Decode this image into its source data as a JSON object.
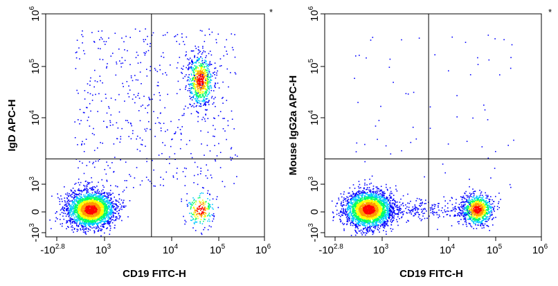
{
  "chart_data": [
    {
      "type": "scatter",
      "subtype": "flow-cytometry-density-dot-plot",
      "xlabel": "CD19 FITC-H",
      "ylabel": "IgD APC-H",
      "corner_mark": "*",
      "x_scale": "biexponential",
      "y_scale": "biexponential",
      "xlim": [
        -630,
        1000000
      ],
      "ylim": [
        -1000,
        1000000
      ],
      "x_ticks": [
        {
          "value": -630,
          "base": "-10",
          "exp": "2.8"
        },
        {
          "value": 1000,
          "base": "10",
          "exp": "3"
        },
        {
          "value": 10000,
          "base": "10",
          "exp": "4"
        },
        {
          "value": 100000,
          "base": "10",
          "exp": "5"
        },
        {
          "value": 1000000,
          "base": "10",
          "exp": "6"
        }
      ],
      "y_ticks": [
        {
          "value": -1000,
          "base": "-10",
          "exp": "3"
        },
        {
          "value": 0,
          "base": "0",
          "exp": ""
        },
        {
          "value": 1000,
          "base": "10",
          "exp": "3"
        },
        {
          "value": 10000,
          "base": "10",
          "exp": "4"
        },
        {
          "value": 100000,
          "base": "10",
          "exp": "5"
        },
        {
          "value": 1000000,
          "base": "10",
          "exp": "6"
        }
      ],
      "gate_lines": {
        "x": 5000,
        "y": 2400
      },
      "populations": [
        {
          "name": "CD19- IgD-",
          "x": 500,
          "y": 100,
          "relative_density": "highest"
        },
        {
          "name": "CD19+ IgD+",
          "x": 40000,
          "y": 55000,
          "relative_density": "high"
        },
        {
          "name": "CD19+ IgD-",
          "x": 40000,
          "y": 100,
          "relative_density": "low"
        }
      ],
      "colormap": [
        "#0000ff",
        "#00c8ff",
        "#00ff66",
        "#ffff00",
        "#ff9900",
        "#ff0000"
      ],
      "grid": false
    },
    {
      "type": "scatter",
      "subtype": "flow-cytometry-density-dot-plot",
      "xlabel": "CD19 FITC-H",
      "ylabel": "Mouse IgG2a APC-H",
      "corner_mark": "*",
      "x_scale": "biexponential",
      "y_scale": "biexponential",
      "xlim": [
        -630,
        1000000
      ],
      "ylim": [
        -1000,
        1000000
      ],
      "x_ticks": [
        {
          "value": -630,
          "base": "-10",
          "exp": "2.8"
        },
        {
          "value": 1000,
          "base": "10",
          "exp": "3"
        },
        {
          "value": 10000,
          "base": "10",
          "exp": "4"
        },
        {
          "value": 100000,
          "base": "10",
          "exp": "5"
        },
        {
          "value": 1000000,
          "base": "10",
          "exp": "6"
        }
      ],
      "y_ticks": [
        {
          "value": -1000,
          "base": "-10",
          "exp": "3"
        },
        {
          "value": 0,
          "base": "0",
          "exp": ""
        },
        {
          "value": 1000,
          "base": "10",
          "exp": "3"
        },
        {
          "value": 10000,
          "base": "10",
          "exp": "4"
        },
        {
          "value": 100000,
          "base": "10",
          "exp": "5"
        },
        {
          "value": 1000000,
          "base": "10",
          "exp": "6"
        }
      ],
      "gate_lines": {
        "x": 5000,
        "y": 2400
      },
      "populations": [
        {
          "name": "CD19- isotype-",
          "x": 500,
          "y": 100,
          "relative_density": "highest"
        },
        {
          "name": "CD19+ isotype-",
          "x": 40000,
          "y": 100,
          "relative_density": "high"
        }
      ],
      "colormap": [
        "#0000ff",
        "#00c8ff",
        "#00ff66",
        "#ffff00",
        "#ff9900",
        "#ff0000"
      ],
      "grid": false
    }
  ]
}
